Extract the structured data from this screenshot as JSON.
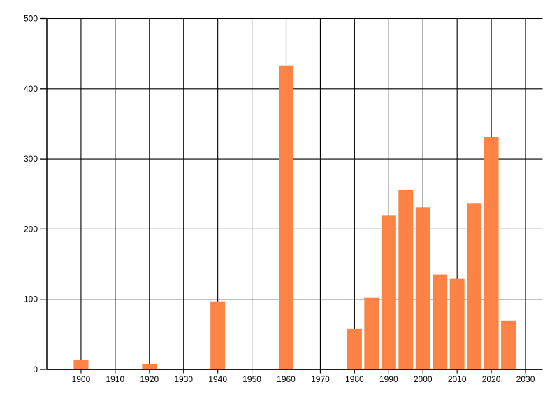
{
  "chart": {
    "background_color": "#ffffff",
    "bar_color": "#FC8245",
    "grid_color": "#000000",
    "axis_color": "#000000",
    "label_color": "#000000"
  },
  "chart_data": {
    "type": "bar",
    "title": "",
    "subtitle": "",
    "xlabel": "",
    "ylabel": "",
    "legend": "none",
    "grid": true,
    "xlim": [
      1890,
      2035
    ],
    "ylim": [
      0,
      500
    ],
    "x_ticks": [
      1900,
      1910,
      1920,
      1930,
      1940,
      1950,
      1960,
      1970,
      1980,
      1990,
      2000,
      2010,
      2020,
      2030
    ],
    "x_tick_labels": [
      "1900",
      "1910",
      "1920",
      "1930",
      "1940",
      "1950",
      "1960",
      "1970",
      "1980",
      "1990",
      "2000",
      "2010",
      "2020",
      "2030"
    ],
    "y_ticks": [
      0,
      100,
      200,
      300,
      400,
      500
    ],
    "y_tick_labels": [
      "0",
      "100",
      "200",
      "300",
      "400",
      "500"
    ],
    "x": [
      1900,
      1920,
      1940,
      1960,
      1980,
      1985,
      1990,
      1995,
      2000,
      2005,
      2010,
      2015,
      2020,
      2025
    ],
    "values": [
      14,
      8,
      97,
      433,
      58,
      102,
      219,
      256,
      231,
      135,
      129,
      237,
      331,
      69
    ]
  }
}
